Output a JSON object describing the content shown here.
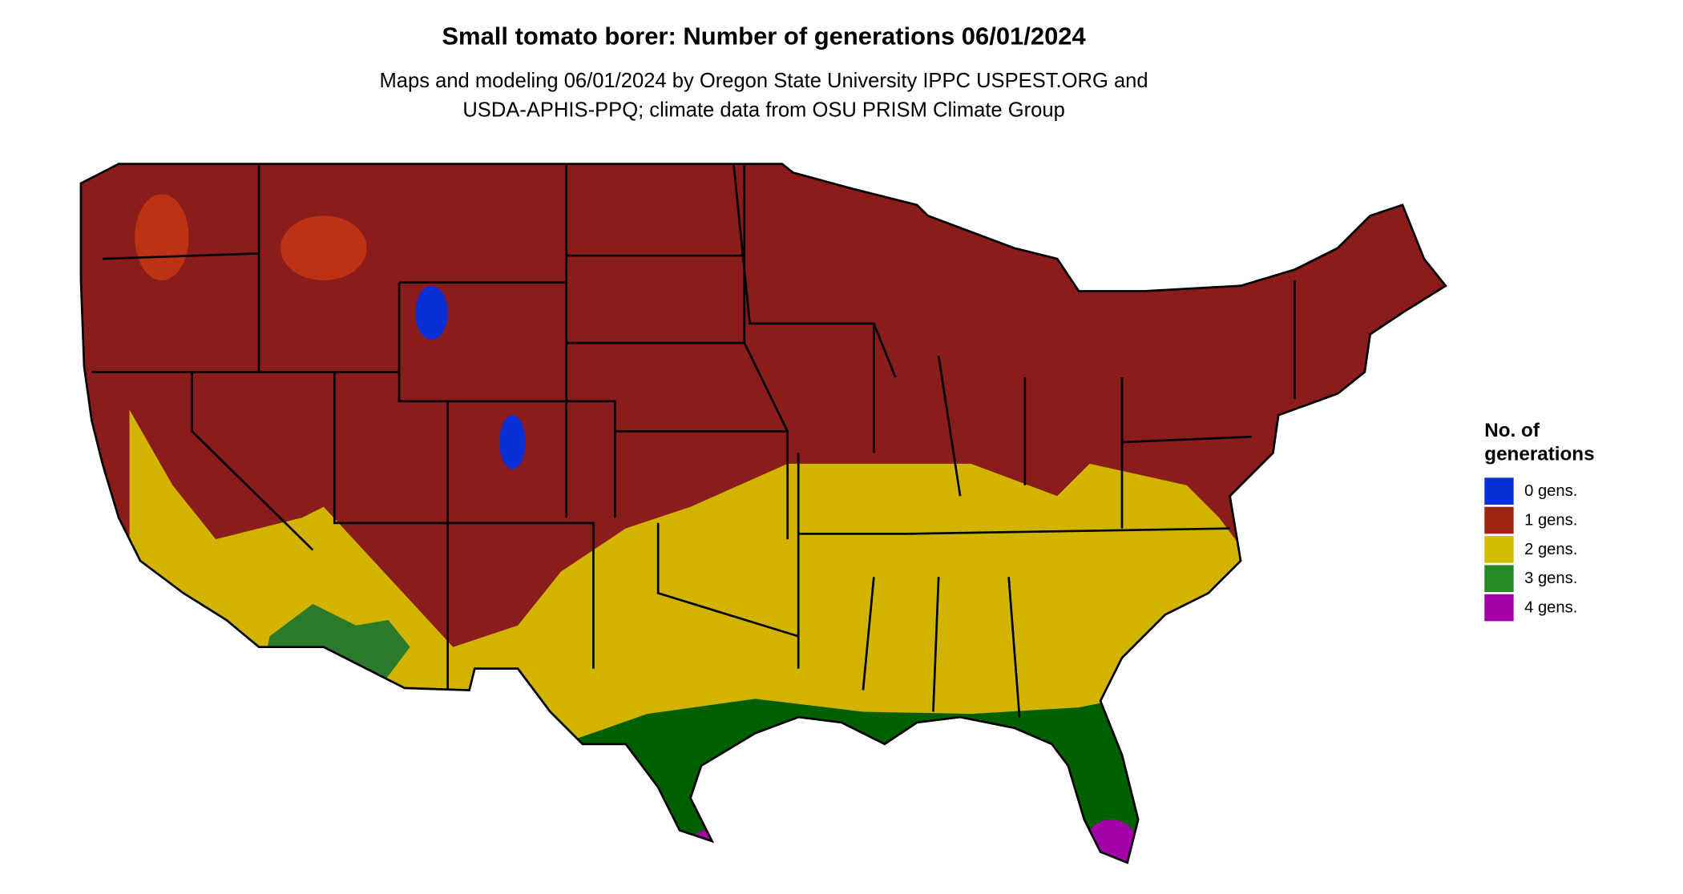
{
  "header": {
    "title": "Small tomato borer: Number of generations 06/01/2024",
    "subtitle_lines": [
      "Maps and modeling 06/01/2024 by Oregon State University IPPC USPEST.ORG and",
      "USDA-APHIS-PPQ; climate data from OSU PRISM Climate Group"
    ]
  },
  "legend": {
    "title_lines": [
      "No. of",
      "generations"
    ],
    "items": [
      {
        "label": "0 gens.",
        "color": "#0a2fd6"
      },
      {
        "label": "1 gens.",
        "color": "#9e2412"
      },
      {
        "label": "2 gens.",
        "color": "#d2bc00"
      },
      {
        "label": "3 gens.",
        "color": "#248a28"
      },
      {
        "label": "4 gens.",
        "color": "#a400a8"
      }
    ]
  }
}
